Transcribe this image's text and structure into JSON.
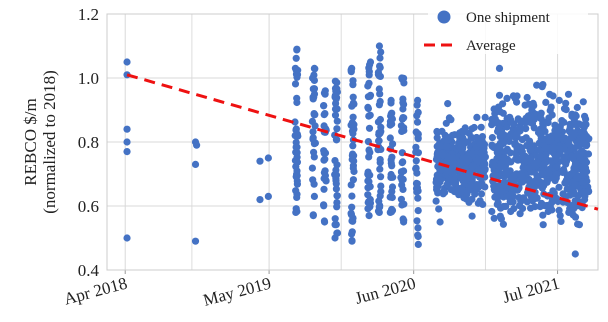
{
  "chart_data": {
    "type": "scatter",
    "title": "",
    "xlabel": "",
    "ylabel": [
      "REBCO $/m",
      "(normalized to 2018)"
    ],
    "ylim": [
      0.4,
      1.2
    ],
    "yticks": [
      "0.4",
      "0.6",
      "0.8",
      "1.0",
      "1.2"
    ],
    "xlim": [
      "2018-02-10",
      "2021-10-20"
    ],
    "xticks": [
      {
        "date": "2018-04-01",
        "label": "Apr 2018"
      },
      {
        "date": "2019-05-01",
        "label": "May 2019"
      },
      {
        "date": "2020-06-01",
        "label": "Jun 2020"
      },
      {
        "date": "2021-07-01",
        "label": "Jul 2021"
      }
    ],
    "grid": true,
    "legend_position": "top-right",
    "colors": {
      "points": "#4472c4",
      "average": "#ee1111"
    },
    "series": [
      {
        "name": "One shipment",
        "kind": "points",
        "points": [
          {
            "x": "2018-04-06",
            "y": 1.05
          },
          {
            "x": "2018-04-06",
            "y": 1.01
          },
          {
            "x": "2018-04-06",
            "y": 0.84
          },
          {
            "x": "2018-04-06",
            "y": 0.8
          },
          {
            "x": "2018-04-06",
            "y": 0.77
          },
          {
            "x": "2018-04-06",
            "y": 0.5
          },
          {
            "x": "2018-10-11",
            "y": 0.8
          },
          {
            "x": "2018-10-14",
            "y": 0.79
          },
          {
            "x": "2018-10-11",
            "y": 0.73
          },
          {
            "x": "2018-10-11",
            "y": 0.49
          },
          {
            "x": "2019-04-06",
            "y": 0.74
          },
          {
            "x": "2019-04-06",
            "y": 0.62
          },
          {
            "x": "2019-04-29",
            "y": 0.75
          },
          {
            "x": "2019-04-29",
            "y": 0.63
          }
        ],
        "clusters": [
          {
            "x": "2019-07-15",
            "ymin": 0.58,
            "ymax": 1.09,
            "n": 40
          },
          {
            "x": "2019-09-01",
            "ymin": 0.57,
            "ymax": 1.03,
            "n": 30
          },
          {
            "x": "2019-10-01",
            "ymin": 0.55,
            "ymax": 0.96,
            "n": 28
          },
          {
            "x": "2019-11-01",
            "ymin": 0.5,
            "ymax": 0.99,
            "n": 38
          },
          {
            "x": "2019-12-16",
            "ymin": 0.49,
            "ymax": 1.03,
            "n": 40
          },
          {
            "x": "2020-01-31",
            "ymin": 0.57,
            "ymax": 1.05,
            "n": 36
          },
          {
            "x": "2020-02-28",
            "ymin": 0.58,
            "ymax": 1.1,
            "n": 40
          },
          {
            "x": "2020-04-01",
            "ymin": 0.58,
            "ymax": 0.93,
            "n": 30
          },
          {
            "x": "2020-05-01",
            "ymin": 0.55,
            "ymax": 1.0,
            "n": 32
          },
          {
            "x": "2020-06-10",
            "ymin": 0.48,
            "ymax": 0.93,
            "n": 30
          },
          {
            "x": "2020-08-01",
            "xmax": "2020-12-15",
            "ymin": 0.55,
            "ymax": 0.92,
            "n": 320
          },
          {
            "x": "2021-01-01",
            "xmax": "2021-09-25",
            "ymin": 0.45,
            "ymax": 1.03,
            "n": 650
          }
        ]
      },
      {
        "name": "Average",
        "kind": "dashed-line",
        "points": [
          {
            "x": "2018-04-06",
            "y": 1.01
          },
          {
            "x": "2021-10-20",
            "y": 0.59
          }
        ]
      }
    ]
  }
}
